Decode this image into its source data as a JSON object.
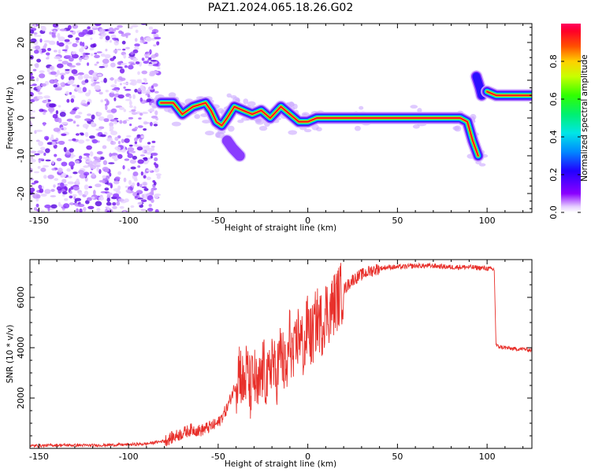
{
  "title": "PAZ1.2024.065.18.26.G02",
  "chart_data": [
    {
      "type": "heatmap",
      "xlabel": "Height of straight line (km)",
      "ylabel": "Frequency (Hz)",
      "xlim": [
        -155,
        125
      ],
      "ylim": [
        -25,
        25
      ],
      "x_ticks": [
        -150,
        -100,
        -50,
        0,
        50,
        100
      ],
      "y_ticks": [
        -20,
        -10,
        0,
        10,
        20
      ],
      "colorbar": {
        "label": "Normalized spectral amplitude",
        "range": [
          0,
          1
        ],
        "ticks": [
          0.0,
          0.2,
          0.4,
          0.6,
          0.8
        ],
        "colormap": "gist_rainbow (purple→red)"
      },
      "features": {
        "noise_region_x": [
          -155,
          -83
        ],
        "main_track": [
          {
            "x": -82,
            "y": 4
          },
          {
            "x": -75,
            "y": 4
          },
          {
            "x": -70,
            "y": 1
          },
          {
            "x": -64,
            "y": 3
          },
          {
            "x": -57,
            "y": 4
          },
          {
            "x": -54,
            "y": 2
          },
          {
            "x": -51,
            "y": -1
          },
          {
            "x": -48,
            "y": -2
          },
          {
            "x": -45,
            "y": 0
          },
          {
            "x": -41,
            "y": 3
          },
          {
            "x": -36,
            "y": 2
          },
          {
            "x": -31,
            "y": 1
          },
          {
            "x": -26,
            "y": 2
          },
          {
            "x": -21,
            "y": 0
          },
          {
            "x": -15,
            "y": 3
          },
          {
            "x": -10,
            "y": 1
          },
          {
            "x": -5,
            "y": -1
          },
          {
            "x": 0,
            "y": -1
          },
          {
            "x": 5,
            "y": 0
          },
          {
            "x": 30,
            "y": 0
          },
          {
            "x": 60,
            "y": 0
          },
          {
            "x": 85,
            "y": 0
          },
          {
            "x": 89,
            "y": -1
          },
          {
            "x": 92,
            "y": -6
          },
          {
            "x": 95,
            "y": -10
          }
        ],
        "spike_branch": [
          {
            "x": 94,
            "y": 11
          },
          {
            "x": 96,
            "y": 8
          },
          {
            "x": 97,
            "y": 6
          }
        ],
        "upper_track": [
          {
            "x": 100,
            "y": 7
          },
          {
            "x": 105,
            "y": 6
          },
          {
            "x": 110,
            "y": 6
          },
          {
            "x": 115,
            "y": 6
          },
          {
            "x": 125,
            "y": 6
          }
        ],
        "minor_branch": [
          {
            "x": -45,
            "y": -6
          },
          {
            "x": -42,
            "y": -8
          },
          {
            "x": -38,
            "y": -10
          }
        ]
      }
    },
    {
      "type": "line",
      "xlabel": "Height of straight line (km)",
      "ylabel": "SNR (10 * v/v)",
      "xlim": [
        -155,
        125
      ],
      "ylim": [
        0,
        7500
      ],
      "x_ticks": [
        -150,
        -100,
        -50,
        0,
        50,
        100
      ],
      "y_ticks": [
        2000,
        4000,
        6000
      ],
      "color": "#e8302b",
      "series": [
        {
          "x": [
            -155,
            -140,
            -120,
            -100,
            -90,
            -80,
            -75,
            -70,
            -65,
            -60,
            -55,
            -50,
            -45,
            -40,
            -38,
            -36,
            -34,
            -32,
            -30,
            -28,
            -25,
            -22,
            -20,
            -18,
            -15,
            -12,
            -10,
            -8,
            -5,
            -2,
            0,
            2,
            5,
            8,
            10,
            12,
            15,
            18,
            20,
            25,
            30,
            35,
            40,
            45,
            50,
            60,
            70,
            80,
            90,
            100,
            104,
            105,
            106,
            110,
            115,
            120,
            125
          ],
          "y": [
            100,
            130,
            120,
            150,
            180,
            300,
            450,
            600,
            750,
            700,
            850,
            1000,
            1600,
            2600,
            3300,
            2400,
            3100,
            2300,
            2900,
            2100,
            3200,
            2500,
            3800,
            2700,
            3900,
            2800,
            4500,
            3400,
            4700,
            3800,
            5100,
            4300,
            5200,
            4900,
            5500,
            5400,
            5800,
            6100,
            6300,
            6700,
            6900,
            7050,
            7150,
            7200,
            7200,
            7250,
            7250,
            7200,
            7200,
            7150,
            7100,
            4100,
            4050,
            4000,
            3950,
            3950,
            3900
          ]
        }
      ]
    }
  ]
}
